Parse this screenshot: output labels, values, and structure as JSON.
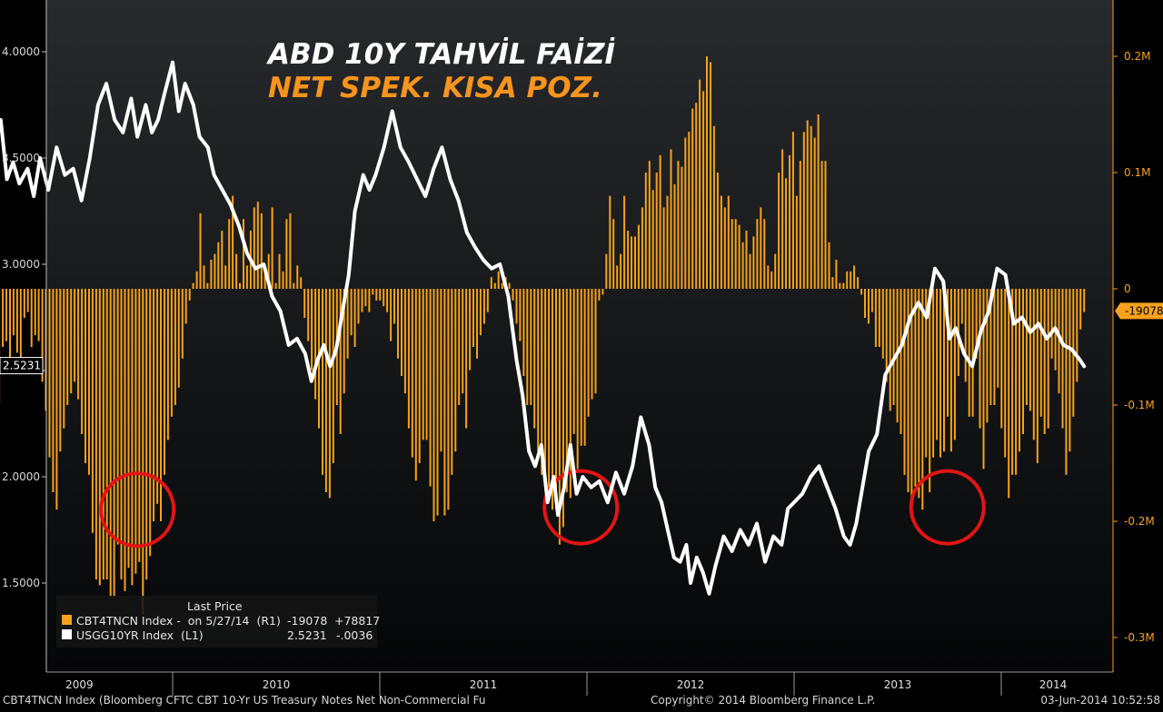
{
  "title_line1": "ABD 10Y TAHVİL FAİZİ",
  "title_line2": "NET SPEK. KISA POZ.",
  "footer_left": "CBT4TNCN Index (Bloomberg CFTC CBT 10-Yr US Treasury Notes Net Non-Commercial Fu",
  "footer_center": "Copyright© 2014 Bloomberg Finance L.P.",
  "footer_right": "03-Jun-2014 10:52:58",
  "legend": {
    "header": "Last Price",
    "row1_name": "CBT4TNCN Index -  on 5/27/14  (R1)",
    "row1_last": "-19078",
    "row1_change": "+78817",
    "row2_name": "USGG10YR Index  (L1)",
    "row2_last": "2.5231",
    "row2_change": "-.0036"
  },
  "colors": {
    "background_top": "#27292c",
    "background_bottom": "#050607",
    "bars": "#f7a21b",
    "line": "#ffffff",
    "title1": "#ffffff",
    "title2": "#f7941d",
    "circles": "#e41414",
    "left_axis_text": "#d8d8d8",
    "right_axis_text": "#f7a21b"
  },
  "chart_data": {
    "type": "bar+line",
    "x_tick_labels": [
      "2009",
      "2010",
      "2011",
      "2012",
      "2013",
      "2014"
    ],
    "left_axis": {
      "ticks": [
        "4.0000",
        "3.5000",
        "3.0000",
        "2.5000",
        "2.0000",
        "1.5000"
      ],
      "tick_values": [
        4.0,
        3.5,
        3.0,
        2.5,
        2.0,
        1.5
      ],
      "last_value_label": "2.5231",
      "last_value": 2.5231
    },
    "right_axis": {
      "ticks": [
        "0.2M",
        "0.1M",
        "0",
        "-0.1M",
        "-0.2M",
        "-0.3M"
      ],
      "tick_values": [
        200000,
        100000,
        0,
        -100000,
        -200000,
        -300000
      ],
      "last_value_label": "-19078",
      "last_value": -19078
    },
    "series": [
      {
        "name": "CBT4TNCN Index",
        "type": "bar",
        "axis": "right",
        "t_start": 2008.92,
        "t_end": 2014.4,
        "values_k": [
          -180,
          -135,
          -145,
          -100,
          -85,
          -95,
          -60,
          -95,
          -115,
          -85,
          -105,
          -120,
          -90,
          -110,
          -100,
          -50,
          -45,
          -60,
          -40,
          -55,
          -70,
          -25,
          -20,
          -50,
          -40,
          -45,
          -80,
          -105,
          -145,
          -175,
          -190,
          -140,
          -120,
          -100,
          -90,
          -80,
          -95,
          -125,
          -150,
          -160,
          -210,
          -250,
          -255,
          -250,
          -250,
          -265,
          -265,
          -220,
          -250,
          -260,
          -240,
          -255,
          -245,
          -235,
          -280,
          -250,
          -230,
          -200,
          -185,
          -200,
          -160,
          -130,
          -110,
          -100,
          -85,
          -60,
          -30,
          -10,
          5,
          15,
          65,
          20,
          5,
          25,
          30,
          40,
          50,
          20,
          60,
          80,
          30,
          5,
          60,
          20,
          50,
          70,
          75,
          65,
          15,
          30,
          70,
          5,
          30,
          15,
          60,
          65,
          5,
          20,
          10,
          -25,
          -45,
          -70,
          -95,
          -120,
          -160,
          -175,
          -180,
          -150,
          -100,
          -125,
          -90,
          -60,
          -40,
          -50,
          -30,
          -20,
          -15,
          -20,
          -5,
          -10,
          -10,
          -15,
          -20,
          -45,
          -30,
          -60,
          -75,
          -90,
          -120,
          -145,
          -165,
          -150,
          -130,
          -130,
          -170,
          -200,
          -195,
          -140,
          -195,
          -190,
          -160,
          -140,
          -100,
          -90,
          -120,
          -70,
          -50,
          -60,
          -40,
          -30,
          -20,
          10,
          5,
          15,
          5,
          10,
          5,
          -10,
          -30,
          -45,
          -75,
          -100,
          -100,
          -120,
          -140,
          -160,
          -165,
          -175,
          -190,
          -190,
          -220,
          -205,
          -175,
          -180,
          -125,
          -155,
          -135,
          -135,
          -110,
          -95,
          -90,
          -10,
          -5,
          30,
          80,
          60,
          20,
          30,
          80,
          50,
          45,
          45,
          55,
          70,
          100,
          110,
          85,
          100,
          115,
          70,
          80,
          120,
          90,
          110,
          105,
          130,
          135,
          155,
          160,
          180,
          170,
          200,
          195,
          140,
          100,
          80,
          70,
          80,
          60,
          60,
          55,
          40,
          50,
          30,
          45,
          60,
          70,
          60,
          20,
          15,
          30,
          100,
          120,
          95,
          115,
          135,
          80,
          110,
          135,
          145,
          140,
          130,
          150,
          110,
          110,
          40,
          10,
          25,
          5,
          5,
          15,
          15,
          20,
          10,
          -5,
          -25,
          -30,
          -20,
          -50,
          -50,
          -60,
          -80,
          -105,
          -100,
          -115,
          -125,
          -160,
          -175,
          -190,
          -170,
          -180,
          -190,
          -145,
          -175,
          -145,
          -130,
          -145,
          -140,
          -110,
          -140,
          -130,
          -75,
          -30,
          -80,
          -110,
          -110,
          -60,
          -120,
          -155,
          -115,
          -100,
          -100,
          -85,
          -120,
          -145,
          -180,
          -160,
          -160,
          -140,
          -125,
          -100,
          -105,
          -130,
          -150,
          -110,
          -125,
          -120,
          -60,
          -70,
          -90,
          -120,
          -160,
          -140,
          -110,
          -80,
          -35,
          -20
        ],
        "unit": "thousand contracts"
      },
      {
        "name": "USGG10YR Index",
        "type": "line",
        "axis": "left",
        "points": [
          [
            2008.92,
            3.6
          ],
          [
            2008.94,
            3.78
          ],
          [
            2008.97,
            3.55
          ],
          [
            2009.0,
            3.62
          ],
          [
            2009.02,
            3.9
          ],
          [
            2009.05,
            3.78
          ],
          [
            2009.08,
            3.5
          ],
          [
            2009.1,
            3.62
          ],
          [
            2009.13,
            3.48
          ],
          [
            2009.17,
            3.68
          ],
          [
            2009.2,
            3.4
          ],
          [
            2009.23,
            3.48
          ],
          [
            2009.26,
            3.38
          ],
          [
            2009.3,
            3.45
          ],
          [
            2009.33,
            3.32
          ],
          [
            2009.36,
            3.5
          ],
          [
            2009.4,
            3.35
          ],
          [
            2009.44,
            3.55
          ],
          [
            2009.48,
            3.42
          ],
          [
            2009.52,
            3.45
          ],
          [
            2009.56,
            3.3
          ],
          [
            2009.6,
            3.5
          ],
          [
            2009.64,
            3.75
          ],
          [
            2009.68,
            3.85
          ],
          [
            2009.72,
            3.68
          ],
          [
            2009.76,
            3.62
          ],
          [
            2009.8,
            3.78
          ],
          [
            2009.83,
            3.6
          ],
          [
            2009.87,
            3.75
          ],
          [
            2009.9,
            3.62
          ],
          [
            2009.93,
            3.68
          ],
          [
            2009.96,
            3.8
          ],
          [
            2010.0,
            3.95
          ],
          [
            2010.03,
            3.72
          ],
          [
            2010.06,
            3.85
          ],
          [
            2010.1,
            3.75
          ],
          [
            2010.13,
            3.6
          ],
          [
            2010.17,
            3.55
          ],
          [
            2010.2,
            3.42
          ],
          [
            2010.24,
            3.35
          ],
          [
            2010.28,
            3.28
          ],
          [
            2010.32,
            3.18
          ],
          [
            2010.36,
            3.05
          ],
          [
            2010.4,
            2.98
          ],
          [
            2010.44,
            3.0
          ],
          [
            2010.48,
            2.85
          ],
          [
            2010.52,
            2.78
          ],
          [
            2010.56,
            2.62
          ],
          [
            2010.6,
            2.65
          ],
          [
            2010.64,
            2.58
          ],
          [
            2010.67,
            2.45
          ],
          [
            2010.7,
            2.55
          ],
          [
            2010.73,
            2.62
          ],
          [
            2010.76,
            2.52
          ],
          [
            2010.79,
            2.6
          ],
          [
            2010.82,
            2.78
          ],
          [
            2010.85,
            2.95
          ],
          [
            2010.88,
            3.25
          ],
          [
            2010.92,
            3.42
          ],
          [
            2010.95,
            3.35
          ],
          [
            2010.98,
            3.42
          ],
          [
            2011.02,
            3.55
          ],
          [
            2011.06,
            3.72
          ],
          [
            2011.1,
            3.55
          ],
          [
            2011.14,
            3.48
          ],
          [
            2011.18,
            3.4
          ],
          [
            2011.22,
            3.32
          ],
          [
            2011.26,
            3.45
          ],
          [
            2011.3,
            3.55
          ],
          [
            2011.34,
            3.4
          ],
          [
            2011.38,
            3.3
          ],
          [
            2011.42,
            3.15
          ],
          [
            2011.46,
            3.08
          ],
          [
            2011.5,
            3.02
          ],
          [
            2011.54,
            2.98
          ],
          [
            2011.58,
            3.0
          ],
          [
            2011.62,
            2.85
          ],
          [
            2011.66,
            2.55
          ],
          [
            2011.69,
            2.38
          ],
          [
            2011.72,
            2.12
          ],
          [
            2011.75,
            2.05
          ],
          [
            2011.78,
            2.15
          ],
          [
            2011.81,
            1.88
          ],
          [
            2011.84,
            2.0
          ],
          [
            2011.86,
            1.82
          ],
          [
            2011.89,
            1.95
          ],
          [
            2011.92,
            2.15
          ],
          [
            2011.95,
            1.92
          ],
          [
            2011.98,
            2.0
          ],
          [
            2012.02,
            1.95
          ],
          [
            2012.06,
            1.98
          ],
          [
            2012.1,
            1.88
          ],
          [
            2012.14,
            2.02
          ],
          [
            2012.18,
            1.92
          ],
          [
            2012.22,
            2.05
          ],
          [
            2012.26,
            2.28
          ],
          [
            2012.3,
            2.15
          ],
          [
            2012.33,
            1.95
          ],
          [
            2012.36,
            1.88
          ],
          [
            2012.39,
            1.75
          ],
          [
            2012.42,
            1.62
          ],
          [
            2012.45,
            1.6
          ],
          [
            2012.48,
            1.68
          ],
          [
            2012.5,
            1.5
          ],
          [
            2012.53,
            1.62
          ],
          [
            2012.56,
            1.55
          ],
          [
            2012.59,
            1.45
          ],
          [
            2012.62,
            1.58
          ],
          [
            2012.66,
            1.72
          ],
          [
            2012.7,
            1.65
          ],
          [
            2012.74,
            1.75
          ],
          [
            2012.78,
            1.68
          ],
          [
            2012.82,
            1.78
          ],
          [
            2012.86,
            1.6
          ],
          [
            2012.9,
            1.72
          ],
          [
            2012.94,
            1.68
          ],
          [
            2012.97,
            1.85
          ],
          [
            2013.0,
            1.88
          ],
          [
            2013.04,
            1.92
          ],
          [
            2013.08,
            2.0
          ],
          [
            2013.12,
            2.05
          ],
          [
            2013.16,
            1.95
          ],
          [
            2013.2,
            1.85
          ],
          [
            2013.24,
            1.72
          ],
          [
            2013.27,
            1.68
          ],
          [
            2013.3,
            1.78
          ],
          [
            2013.33,
            1.95
          ],
          [
            2013.36,
            2.12
          ],
          [
            2013.4,
            2.2
          ],
          [
            2013.44,
            2.48
          ],
          [
            2013.48,
            2.55
          ],
          [
            2013.52,
            2.62
          ],
          [
            2013.56,
            2.75
          ],
          [
            2013.6,
            2.82
          ],
          [
            2013.64,
            2.75
          ],
          [
            2013.68,
            2.98
          ],
          [
            2013.72,
            2.92
          ],
          [
            2013.75,
            2.65
          ],
          [
            2013.78,
            2.7
          ],
          [
            2013.82,
            2.58
          ],
          [
            2013.86,
            2.52
          ],
          [
            2013.9,
            2.68
          ],
          [
            2013.94,
            2.78
          ],
          [
            2013.98,
            2.98
          ],
          [
            2014.02,
            2.95
          ],
          [
            2014.06,
            2.72
          ],
          [
            2014.1,
            2.75
          ],
          [
            2014.14,
            2.68
          ],
          [
            2014.18,
            2.72
          ],
          [
            2014.22,
            2.65
          ],
          [
            2014.26,
            2.7
          ],
          [
            2014.3,
            2.62
          ],
          [
            2014.34,
            2.6
          ],
          [
            2014.38,
            2.55
          ],
          [
            2014.4,
            2.52
          ]
        ]
      }
    ],
    "annotations": [
      "red circle",
      "red circle",
      "red circle"
    ]
  }
}
